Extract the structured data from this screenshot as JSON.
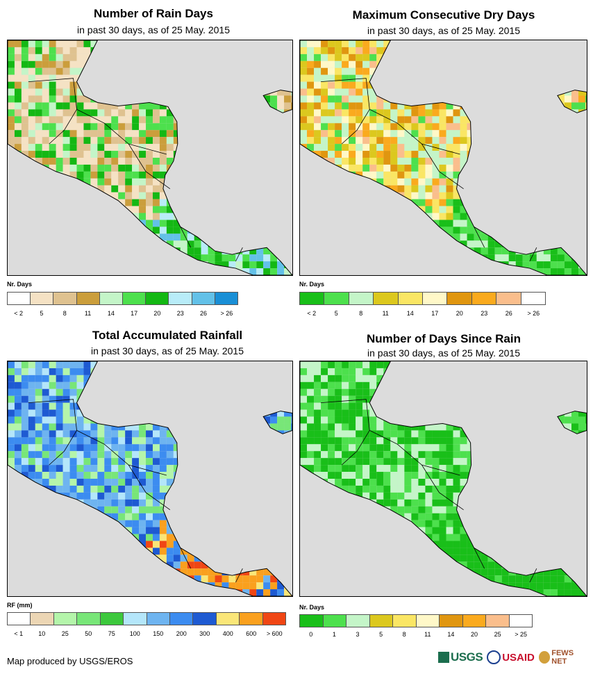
{
  "chart_data": [
    {
      "type": "heatmap",
      "title": "Number of Rain Days",
      "subtitle": "in past 30 days, as of 25 May. 2015",
      "legend": {
        "title": "Nr. Days",
        "colors": [
          "#ffffff",
          "#f5e2c4",
          "#dfc290",
          "#cb9e3c",
          "#c4f5c8",
          "#4de04d",
          "#14b814",
          "#b8ecf8",
          "#63c1e8",
          "#1a8fd6"
        ],
        "labels": [
          "< 2",
          "5",
          "8",
          "11",
          "14",
          "17",
          "20",
          "23",
          "26",
          "> 26"
        ]
      }
    },
    {
      "type": "heatmap",
      "title": "Maximum Consecutive Dry Days",
      "subtitle": "in past 30 days, as of 25 May. 2015",
      "legend": {
        "title": "Nr. Days",
        "colors": [
          "#19bf19",
          "#4de04d",
          "#c4f5c8",
          "#dcc81e",
          "#fae664",
          "#fff8c8",
          "#e09610",
          "#faaa1e",
          "#fabe8c",
          "#ffffff"
        ],
        "labels": [
          "< 2",
          "5",
          "8",
          "11",
          "14",
          "17",
          "20",
          "23",
          "26",
          "> 26"
        ]
      }
    },
    {
      "type": "heatmap",
      "title": "Total Accumulated Rainfall",
      "subtitle": "in past 30 days, as of 25 May. 2015",
      "legend": {
        "title": "RF (mm)",
        "colors": [
          "#ffffff",
          "#ecd6b4",
          "#b4f5aa",
          "#78e678",
          "#3cc83c",
          "#b4e6fa",
          "#6eb4f0",
          "#3c8cf0",
          "#1e5ad2",
          "#fae678",
          "#faa01e",
          "#f04614"
        ],
        "labels": [
          "< 1",
          "10",
          "25",
          "50",
          "75",
          "100",
          "150",
          "200",
          "300",
          "400",
          "600",
          "> 600"
        ]
      }
    },
    {
      "type": "heatmap",
      "title": "Number of Days Since Rain",
      "subtitle": "in past 30 days, as of 25 May. 2015",
      "legend": {
        "title": "Nr. Days",
        "colors": [
          "#19bf19",
          "#4de04d",
          "#c4f5c8",
          "#dcc81e",
          "#fae664",
          "#fff8c8",
          "#e09610",
          "#faaa1e",
          "#fabe8c",
          "#ffffff"
        ],
        "labels": [
          "0",
          "1",
          "3",
          "5",
          "8",
          "11",
          "14",
          "20",
          "25",
          "> 25"
        ]
      }
    }
  ],
  "footer": {
    "credit": "Map produced by USGS/EROS",
    "logos": [
      "USGS",
      "USAID",
      "FEWS NET"
    ]
  }
}
